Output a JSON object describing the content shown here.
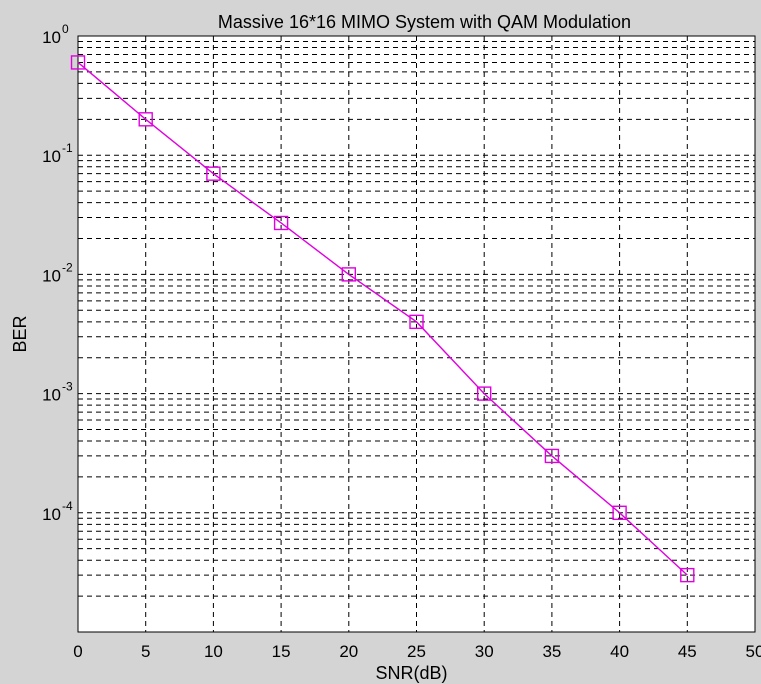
{
  "chart_data": {
    "type": "line",
    "title": "Massive 16*16 MIMO System with QAM Modulation",
    "xlabel": "SNR(dB)",
    "ylabel": "BER",
    "xlim": [
      0,
      50
    ],
    "ylim": [
      1e-05,
      1
    ],
    "yscale": "log",
    "grid": true,
    "grid_style": "dashed",
    "x_ticks": [
      "0",
      "5",
      "10",
      "15",
      "20",
      "25",
      "30",
      "35",
      "40",
      "45",
      "50"
    ],
    "y_ticks": [
      {
        "base": "10",
        "exp": "0",
        "value": 1
      },
      {
        "base": "10",
        "exp": "-1",
        "value": 0.1
      },
      {
        "base": "10",
        "exp": "-2",
        "value": 0.01
      },
      {
        "base": "10",
        "exp": "-3",
        "value": 0.001
      },
      {
        "base": "10",
        "exp": "-4",
        "value": 0.0001
      }
    ],
    "series": [
      {
        "color": "#e000e0",
        "marker": "square",
        "x": [
          0,
          5,
          10,
          15,
          20,
          25,
          30,
          35,
          40,
          45
        ],
        "y": [
          0.6,
          0.2,
          0.07,
          0.027,
          0.01,
          0.004,
          0.001,
          0.0003,
          0.0001,
          3e-05
        ]
      }
    ],
    "colors": {
      "figure_background": "#d4d4d4",
      "axes_background": "#ffffff",
      "grid": "#000000",
      "axes": "#000000"
    }
  }
}
